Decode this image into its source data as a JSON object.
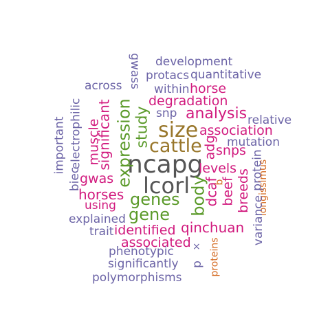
{
  "colors": {
    "purple": "#6b63a6",
    "magenta": "#d11a7e",
    "green": "#5b9a2a",
    "brown": "#98762a",
    "gray": "#555555",
    "orange": "#d4691f"
  },
  "words": {
    "development": "development",
    "gwass": "gwass",
    "quantitative": "quantitative",
    "protacs": "protacs",
    "across": "across",
    "within": "within",
    "horse": "horse",
    "degradation": "degradation",
    "snp": "snp",
    "analysis": "analysis",
    "relative": "relative",
    "muscle": "muscle",
    "electrophilic": "electrophilic",
    "important": "important",
    "significant": "significant",
    "expression": "expression",
    "study": "study",
    "size": "size",
    "association": "association",
    "mutation": "mutation",
    "adg": "adg",
    "cattle": "cattle",
    "snps": "snps",
    "ncapg": "ncapg",
    "biec": "biec",
    "gwas": "gwas",
    "levels": "levels",
    "protein": "protein",
    "longissimus": "longissimus",
    "lcorl": "lcorl",
    "b": "b",
    "horses": "horses",
    "body": "body",
    "dcaf": "dcaf",
    "beef": "beef",
    "breeds": "breeds",
    "genes": "genes",
    "using": "using",
    "gene": "gene",
    "explained": "explained",
    "variance": "variance",
    "trait": "trait",
    "identified": "identified",
    "qinchuan": "qinchuan",
    "associated": "associated",
    "x": "×",
    "p": "p",
    "proteins": "proteins",
    "phenotypic": "phenotypic",
    "significantly": "significantly",
    "polymorphisms": "polymorphisms"
  }
}
